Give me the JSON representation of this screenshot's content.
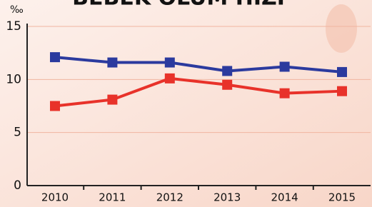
{
  "chart_data": {
    "type": "line",
    "title": "BEBEK ÖLÜM HIZI",
    "y_label": "‰",
    "categories": [
      "2010",
      "2011",
      "2012",
      "2013",
      "2014",
      "2015"
    ],
    "series": [
      {
        "color": "#2b3a9e",
        "values": [
          12.1,
          11.6,
          11.6,
          10.8,
          11.2,
          10.7
        ]
      },
      {
        "color": "#e8322a",
        "values": [
          7.5,
          8.1,
          10.1,
          9.5,
          8.7,
          8.9
        ]
      }
    ],
    "ylim": [
      0,
      15
    ],
    "yticks": [
      0,
      5,
      10,
      15
    ],
    "grid": true
  }
}
